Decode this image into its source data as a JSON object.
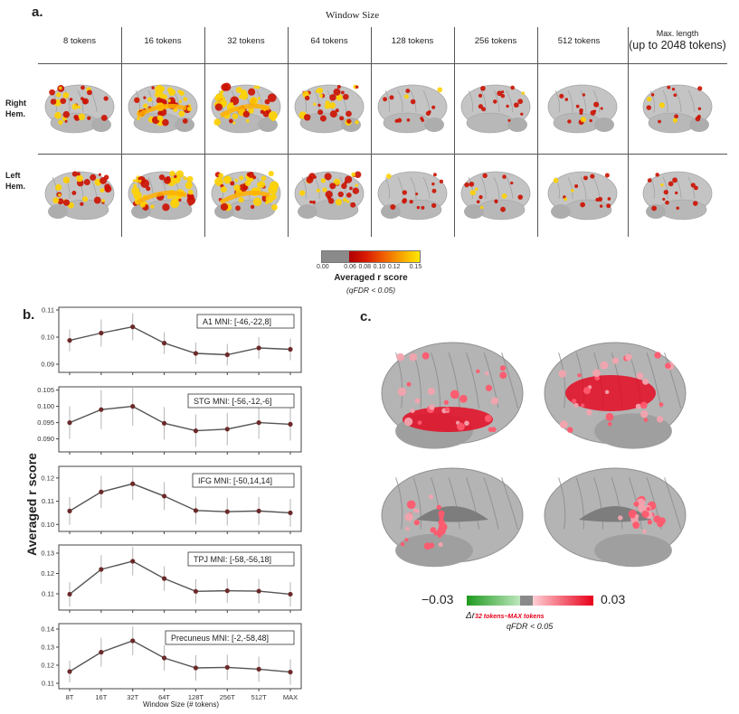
{
  "panel_a": {
    "letter": "a.",
    "title": "Window Size",
    "columns": [
      "8 tokens",
      "16 tokens",
      "32 tokens",
      "64 tokens",
      "128 tokens",
      "256 tokens",
      "512 tokens"
    ],
    "max_header_line1": "Max. length",
    "max_header_line2": "(up to 2048 tokens)",
    "row1": "Right Hem.",
    "row1_line1": "Right",
    "row1_line2": "Hem.",
    "row2_line1": "Left",
    "row2_line2": "Hem.",
    "activation_levels": [
      0.55,
      0.95,
      1.0,
      0.6,
      0.15,
      0.18,
      0.15,
      0.15
    ],
    "colorbar": {
      "ticks": [
        "0.00",
        "0.06",
        "0.08",
        "0.10",
        "0.12",
        "0.15"
      ],
      "label": "Averaged r score",
      "sublabel": "(qFDR < 0.05)"
    }
  },
  "panel_b": {
    "letter": "b.",
    "ylabel": "Averaged r score",
    "xlabel": "Window Size (# tokens)"
  },
  "panel_c": {
    "letter": "c.",
    "cbar_min": "−0.03",
    "cbar_max": "0.03",
    "label_line1": "Δr",
    "label_sub": "32 tokens−MAX tokens",
    "label_line2": "qFDR < 0.05"
  },
  "colors": {
    "line": "#555555",
    "marker": "#6b2a2a",
    "err": "#b5b5b5",
    "brain": "#bdbdbd",
    "heat_hi": "#ffd200",
    "heat_lo": "#cc1100",
    "green": "#2e9e2e",
    "red": "#e8001a"
  },
  "chart_data": [
    {
      "type": "line",
      "legend": "A1 MNI: [-46,-22,8]",
      "categories": [
        "8T",
        "16T",
        "32T",
        "64T",
        "128T",
        "256T",
        "512T",
        "MAX"
      ],
      "values": [
        0.0988,
        0.1015,
        0.1038,
        0.0978,
        0.094,
        0.0935,
        0.096,
        0.0955
      ],
      "err": [
        0.004,
        0.005,
        0.005,
        0.004,
        0.004,
        0.004,
        0.004,
        0.004
      ],
      "ylim": [
        0.087,
        0.111
      ],
      "yticks": [
        0.09,
        0.1,
        0.11
      ],
      "ytick_labels": [
        "0.09",
        "0.10",
        "0.11"
      ]
    },
    {
      "type": "line",
      "legend": "STG MNI: [-56,-12,-6]",
      "categories": [
        "8T",
        "16T",
        "32T",
        "64T",
        "128T",
        "256T",
        "512T",
        "MAX"
      ],
      "values": [
        0.095,
        0.099,
        0.1,
        0.0948,
        0.0925,
        0.093,
        0.095,
        0.0945
      ],
      "err": [
        0.005,
        0.006,
        0.006,
        0.005,
        0.005,
        0.005,
        0.005,
        0.005
      ],
      "ylim": [
        0.086,
        0.106
      ],
      "yticks": [
        0.09,
        0.095,
        0.1,
        0.105
      ],
      "ytick_labels": [
        "0.090",
        "0.095",
        "0.100",
        "0.105"
      ]
    },
    {
      "type": "line",
      "legend": "IFG MNI: [-50,14,14]",
      "categories": [
        "8T",
        "16T",
        "32T",
        "64T",
        "128T",
        "256T",
        "512T",
        "MAX"
      ],
      "values": [
        0.1058,
        0.114,
        0.1175,
        0.1122,
        0.106,
        0.1055,
        0.1058,
        0.105
      ],
      "err": [
        0.006,
        0.007,
        0.007,
        0.006,
        0.006,
        0.006,
        0.006,
        0.006
      ],
      "ylim": [
        0.097,
        0.125
      ],
      "yticks": [
        0.1,
        0.11,
        0.12
      ],
      "ytick_labels": [
        "0.10",
        "0.11",
        "0.12"
      ]
    },
    {
      "type": "line",
      "legend": "TPJ MNI: [-58,-56,18]",
      "categories": [
        "8T",
        "16T",
        "32T",
        "64T",
        "128T",
        "256T",
        "512T",
        "MAX"
      ],
      "values": [
        0.1098,
        0.122,
        0.126,
        0.1175,
        0.1112,
        0.1115,
        0.1113,
        0.1098
      ],
      "err": [
        0.006,
        0.007,
        0.007,
        0.006,
        0.006,
        0.006,
        0.006,
        0.006
      ],
      "ylim": [
        0.102,
        0.134
      ],
      "yticks": [
        0.11,
        0.12,
        0.13
      ],
      "ytick_labels": [
        "0.11",
        "0.12",
        "0.13"
      ]
    },
    {
      "type": "line",
      "legend": "Precuneus MNI: [-2,-58,48]",
      "categories": [
        "8T",
        "16T",
        "32T",
        "64T",
        "128T",
        "256T",
        "512T",
        "MAX"
      ],
      "values": [
        0.1165,
        0.1272,
        0.1335,
        0.124,
        0.1185,
        0.1188,
        0.1178,
        0.1162
      ],
      "err": [
        0.006,
        0.008,
        0.008,
        0.007,
        0.007,
        0.007,
        0.007,
        0.007
      ],
      "ylim": [
        0.107,
        0.143
      ],
      "yticks": [
        0.11,
        0.12,
        0.13,
        0.14
      ],
      "ytick_labels": [
        "0.11",
        "0.12",
        "0.13",
        "0.14"
      ]
    }
  ]
}
